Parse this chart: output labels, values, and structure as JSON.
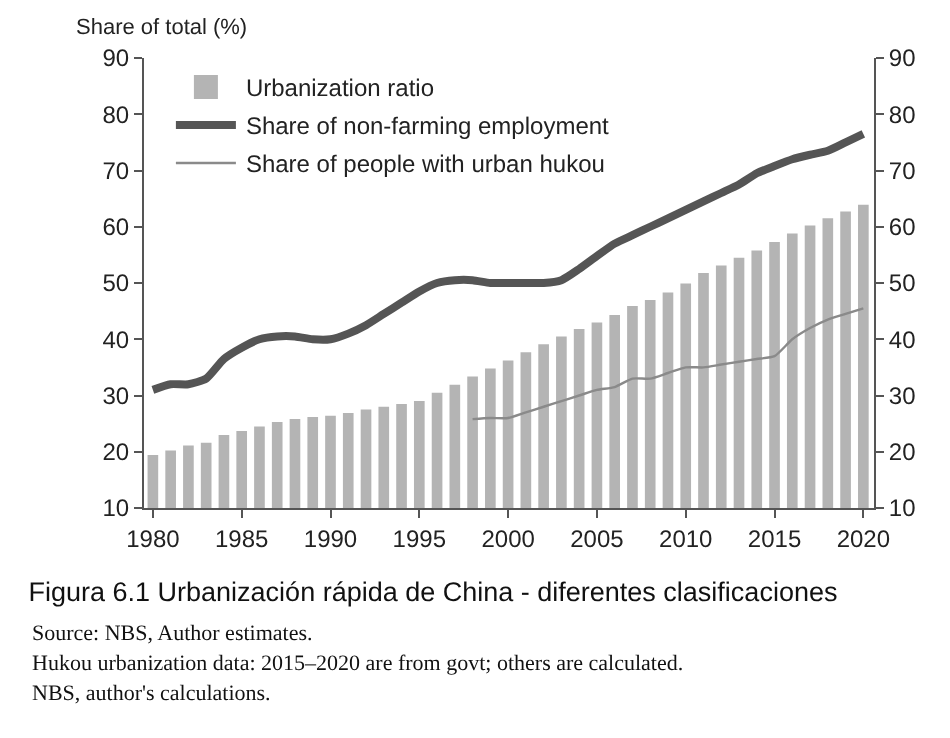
{
  "chart_data": {
    "type": "bar",
    "title": "Figura 6.1 Urbanización rápida de China - diferentes clasificaciones",
    "ylabel": "Share of total (%)",
    "x": [
      1980,
      1981,
      1982,
      1983,
      1984,
      1985,
      1986,
      1987,
      1988,
      1989,
      1990,
      1991,
      1992,
      1993,
      1994,
      1995,
      1996,
      1997,
      1998,
      1999,
      2000,
      2001,
      2002,
      2003,
      2004,
      2005,
      2006,
      2007,
      2008,
      2009,
      2010,
      2011,
      2012,
      2013,
      2014,
      2015,
      2016,
      2017,
      2018,
      2019,
      2020
    ],
    "series": [
      {
        "name": "Urbanization ratio",
        "color": "#b4b4b4",
        "values": [
          19.4,
          20.2,
          21.1,
          21.6,
          23.0,
          23.7,
          24.5,
          25.3,
          25.8,
          26.2,
          26.4,
          26.9,
          27.5,
          28.0,
          28.5,
          29.0,
          30.5,
          31.9,
          33.4,
          34.8,
          36.2,
          37.7,
          39.1,
          40.5,
          41.8,
          43.0,
          44.3,
          45.9,
          47.0,
          48.3,
          49.9,
          51.8,
          53.1,
          54.5,
          55.8,
          57.3,
          58.8,
          60.2,
          61.5,
          62.7,
          63.9
        ]
      },
      {
        "name": "Share of non-farming employment",
        "type": "line",
        "color": "#555555",
        "values": [
          31,
          32,
          32,
          33,
          36.5,
          38.5,
          40,
          40.5,
          40.5,
          40,
          40,
          41,
          42.5,
          44.5,
          46.5,
          48.5,
          50,
          50.5,
          50.5,
          50,
          50,
          50,
          50,
          50.5,
          52.5,
          54.8,
          57,
          58.5,
          60,
          61.5,
          63,
          64.5,
          66,
          67.5,
          69.5,
          70.8,
          72,
          72.8,
          73.5,
          75,
          76.5
        ]
      },
      {
        "name": "Share of people with urban hukou",
        "type": "line",
        "color": "#8a8a8a",
        "x": [
          1998,
          1999,
          2000,
          2001,
          2002,
          2003,
          2004,
          2005,
          2006,
          2007,
          2008,
          2009,
          2010,
          2011,
          2012,
          2013,
          2014,
          2015,
          2016,
          2017,
          2018,
          2019,
          2020
        ],
        "values": [
          25.8,
          26,
          26,
          27,
          28,
          29,
          30,
          31,
          31.5,
          33,
          33,
          34,
          35,
          35,
          35.5,
          36,
          36.5,
          37,
          40,
          42,
          43.5,
          44.5,
          45.5
        ]
      }
    ],
    "xlim": [
      1979.5,
      2020.6
    ],
    "xticks": [
      1980,
      1985,
      1990,
      1995,
      2000,
      2005,
      2010,
      2015,
      2020
    ],
    "ylim": [
      10,
      90
    ],
    "yticks": [
      10,
      20,
      30,
      40,
      50,
      60,
      70,
      80,
      90
    ],
    "y2lim": [
      10,
      90
    ],
    "y2ticks": [
      10,
      20,
      30,
      40,
      50,
      60,
      70,
      80,
      90
    ],
    "legend": "top left",
    "grid": false,
    "annotations": [
      "Source: NBS, Author estimates.",
      "Hukou urbanization data: 2015–2020 are from govt; others are calculated.",
      "NBS, author's calculations."
    ]
  }
}
